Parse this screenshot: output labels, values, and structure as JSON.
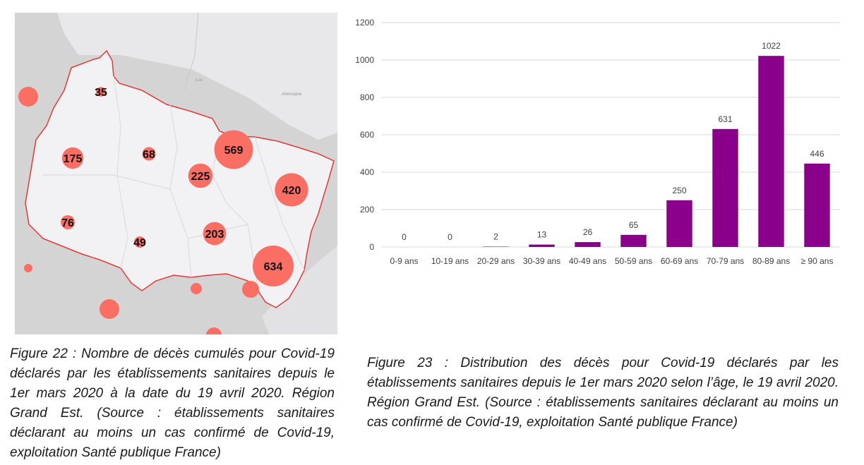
{
  "map": {
    "background_color": "#d4d4d4",
    "region_fill": "#f2f2f4",
    "border_color": "#e53935",
    "bubble_color": "#fa6e64",
    "region_labels": [
      {
        "label": "35",
        "value": 35
      },
      {
        "label": "175",
        "value": 175
      },
      {
        "label": "68",
        "value": 68
      },
      {
        "label": "569",
        "value": 569
      },
      {
        "label": "225",
        "value": 225
      },
      {
        "label": "420",
        "value": 420
      },
      {
        "label": "76",
        "value": 76
      },
      {
        "label": "49",
        "value": 49
      },
      {
        "label": "203",
        "value": 203
      },
      {
        "label": "634",
        "value": 634
      }
    ]
  },
  "chart_data": {
    "type": "bar",
    "categories": [
      "0-9 ans",
      "10-19 ans",
      "20-29 ans",
      "30-39 ans",
      "40-49 ans",
      "50-59 ans",
      "60-69 ans",
      "70-79 ans",
      "80-89 ans",
      "≥ 90 ans"
    ],
    "values": [
      0,
      0,
      2,
      13,
      26,
      65,
      250,
      631,
      1022,
      446
    ],
    "ylim": [
      0,
      1200
    ],
    "yticks": [
      0,
      200,
      400,
      600,
      800,
      1000,
      1200
    ],
    "grid": true,
    "bar_color": "#8b008b",
    "title": "",
    "xlabel": "",
    "ylabel": ""
  },
  "captions": {
    "figure22": "Figure 22 : Nombre de décès cumulés pour Covid-19 déclarés par les établissements sanitaires depuis le 1er mars 2020 à la date du 19 avril 2020. Région Grand Est. (Source : établissements sanitaires déclarant au moins un cas confirmé de Covid-19, exploitation Santé publique France)",
    "figure23": "Figure 23 : Distribution des décès pour Covid-19 déclarés par les établissements sanitaires depuis le 1er mars 2020 selon l’âge, le 19 avril 2020. Région Grand Est. (Source : établissements sanitaires déclarant au moins un cas confirmé de Covid-19, exploitation Santé publique France)"
  }
}
